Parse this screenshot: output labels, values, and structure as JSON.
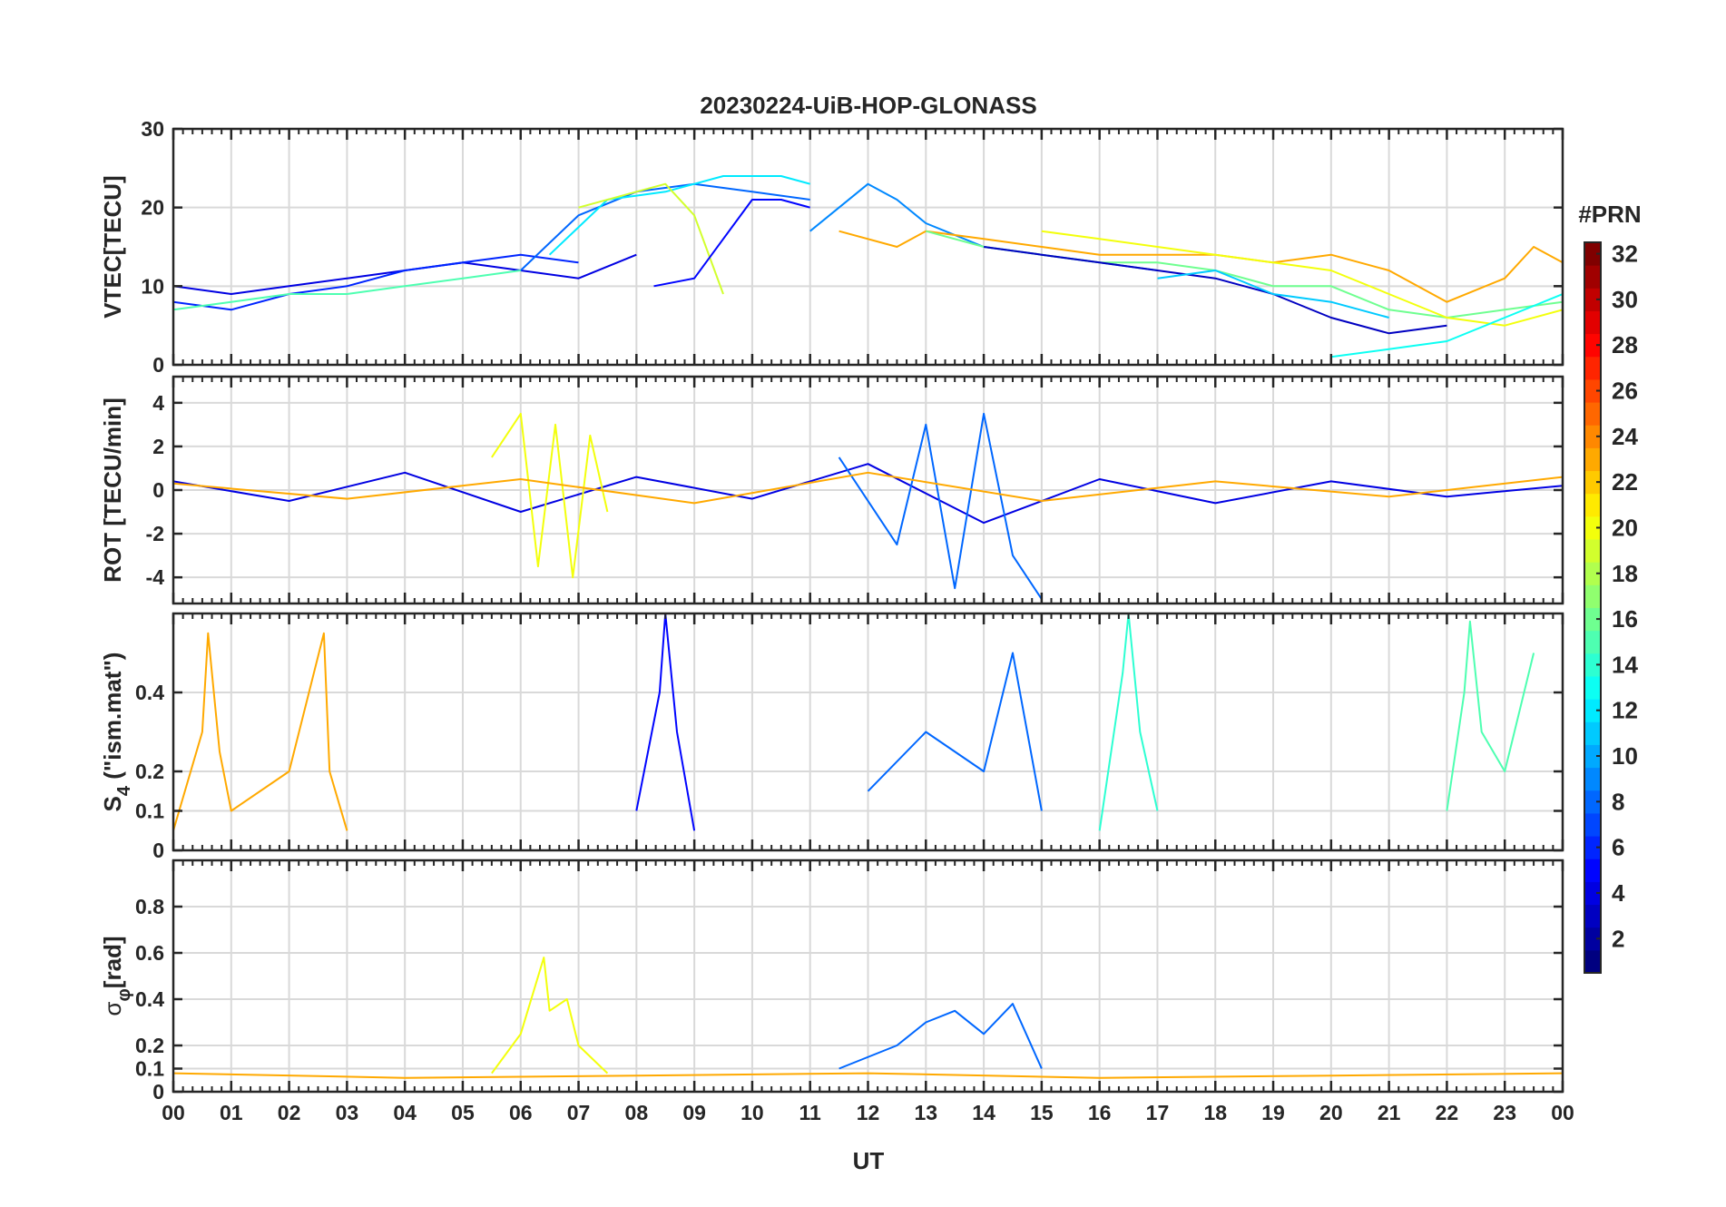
{
  "chart_data": {
    "type": "line",
    "title": "20230224-UiB-HOP-GLONASS",
    "xlabel": "UT",
    "x_ticks": [
      "00",
      "01",
      "02",
      "03",
      "04",
      "05",
      "06",
      "07",
      "08",
      "09",
      "10",
      "11",
      "12",
      "13",
      "14",
      "15",
      "16",
      "17",
      "18",
      "19",
      "20",
      "21",
      "22",
      "23",
      "00"
    ],
    "xlim": [
      0,
      24
    ],
    "grid": true,
    "colorbar": {
      "label": "#PRN",
      "range": [
        1,
        32
      ],
      "ticks": [
        "2",
        "4",
        "6",
        "8",
        "10",
        "12",
        "14",
        "16",
        "18",
        "20",
        "22",
        "24",
        "26",
        "28",
        "30",
        "32"
      ],
      "colormap": "jet"
    },
    "panels": [
      {
        "ylabel": "VTEC[TECU]",
        "ylim": [
          0,
          30
        ],
        "y_ticks": [
          "0",
          "10",
          "20",
          "30"
        ],
        "series": [
          {
            "prn": 4,
            "x": [
              0.0,
              1.0,
              2.0,
              3.0,
              4.0,
              5.0,
              6.0,
              7.0,
              8.0
            ],
            "y": [
              10,
              9,
              10,
              11,
              12,
              13,
              12,
              11,
              14
            ]
          },
          {
            "prn": 6,
            "x": [
              0.0,
              1.0,
              2.0,
              3.0,
              4.0,
              5.0,
              6.0,
              7.0
            ],
            "y": [
              8,
              7,
              9,
              10,
              12,
              13,
              14,
              13
            ]
          },
          {
            "prn": 8,
            "x": [
              6.0,
              7.0,
              8.0,
              9.0,
              10.0,
              11.0
            ],
            "y": [
              12,
              19,
              22,
              23,
              22,
              21
            ]
          },
          {
            "prn": 12,
            "x": [
              6.5,
              7.5,
              8.5,
              9.5,
              10.5,
              11.0
            ],
            "y": [
              14,
              21,
              22,
              24,
              24,
              23
            ]
          },
          {
            "prn": 15,
            "x": [
              0.0,
              1.0,
              2.0,
              3.0,
              4.0,
              5.0,
              6.0
            ],
            "y": [
              7,
              8,
              9,
              9,
              10,
              11,
              12
            ]
          },
          {
            "prn": 19,
            "x": [
              7.0,
              8.0,
              8.5,
              9.0,
              9.5
            ],
            "y": [
              20,
              22,
              23,
              19,
              9
            ]
          },
          {
            "prn": 5,
            "x": [
              8.3,
              9.0,
              9.5,
              10.0,
              10.5,
              11.0
            ],
            "y": [
              10,
              11,
              16,
              21,
              21,
              20
            ]
          },
          {
            "prn": 9,
            "x": [
              11.0,
              12.0,
              12.5,
              13.0,
              14.0,
              15.0,
              16.0,
              17.0
            ],
            "y": [
              17,
              23,
              21,
              18,
              15,
              14,
              13,
              12
            ]
          },
          {
            "prn": 23,
            "x": [
              11.5,
              12.5,
              13.0,
              14.0,
              15.0,
              16.0,
              17.0,
              18.0,
              19.0,
              20.0,
              21.0,
              22.0,
              23.0,
              23.5,
              24.0
            ],
            "y": [
              17,
              15,
              17,
              16,
              15,
              14,
              14,
              14,
              13,
              14,
              12,
              8,
              11,
              15,
              13
            ]
          },
          {
            "prn": 16,
            "x": [
              13.0,
              14.0,
              15.0,
              16.0,
              17.0,
              18.0,
              19.0,
              20.0,
              21.0,
              22.0,
              23.0,
              24.0
            ],
            "y": [
              17,
              15,
              14,
              13,
              13,
              12,
              10,
              10,
              7,
              6,
              7,
              8
            ]
          },
          {
            "prn": 3,
            "x": [
              14.0,
              15.0,
              16.0,
              17.0,
              18.0,
              19.0,
              20.0,
              21.0,
              22.0
            ],
            "y": [
              15,
              14,
              13,
              12,
              11,
              9,
              6,
              4,
              5
            ]
          },
          {
            "prn": 11,
            "x": [
              17.0,
              18.0,
              19.0,
              20.0,
              21.0
            ],
            "y": [
              11,
              12,
              9,
              8,
              6
            ]
          },
          {
            "prn": 20,
            "x": [
              15.0,
              16.0,
              17.0,
              18.0,
              19.0,
              20.0,
              21.0,
              22.0,
              23.0,
              24.0
            ],
            "y": [
              17,
              16,
              15,
              14,
              13,
              12,
              9,
              6,
              5,
              7
            ]
          },
          {
            "prn": 13,
            "x": [
              20.0,
              21.0,
              22.0,
              23.0,
              24.0
            ],
            "y": [
              1,
              2,
              3,
              6,
              9
            ]
          }
        ]
      },
      {
        "ylabel": "ROT [TECU/min]",
        "ylim": [
          -5.2,
          5.2
        ],
        "y_ticks": [
          "-4",
          "-2",
          "0",
          "2",
          "4"
        ],
        "series": [
          {
            "prn": 4,
            "x": [
              0,
              2,
              4,
              6,
              8,
              10,
              12,
              14,
              16,
              18,
              20,
              22,
              24
            ],
            "y": [
              0.4,
              -0.5,
              0.8,
              -1.0,
              0.6,
              -0.4,
              1.2,
              -1.5,
              0.5,
              -0.6,
              0.4,
              -0.3,
              0.2
            ]
          },
          {
            "prn": 20,
            "x": [
              5.5,
              6.0,
              6.3,
              6.6,
              6.9,
              7.2,
              7.5
            ],
            "y": [
              1.5,
              3.5,
              -3.5,
              3.0,
              -4.0,
              2.5,
              -1.0
            ]
          },
          {
            "prn": 8,
            "x": [
              11.5,
              12.5,
              13.0,
              13.5,
              14.0,
              14.5,
              15.0
            ],
            "y": [
              1.5,
              -2.5,
              3.0,
              -4.5,
              3.5,
              -3.0,
              -5.0
            ]
          },
          {
            "prn": 23,
            "x": [
              0,
              3,
              6,
              9,
              12,
              15,
              18,
              21,
              24
            ],
            "y": [
              0.3,
              -0.4,
              0.5,
              -0.6,
              0.8,
              -0.5,
              0.4,
              -0.3,
              0.6
            ]
          }
        ]
      },
      {
        "ylabel": "S4 (\"ism.mat\")",
        "ylabel_main": "S",
        "ylabel_sub": "4",
        "ylabel_rest": " (\"ism.mat\")",
        "ylim": [
          0,
          0.6
        ],
        "y_ticks": [
          "0",
          "0.1",
          "0.2",
          "0.4"
        ],
        "series": [
          {
            "prn": 23,
            "x": [
              0.0,
              0.5,
              0.6,
              0.8,
              1.0,
              2.0,
              2.6,
              2.7,
              3.0
            ],
            "y": [
              0.05,
              0.3,
              0.55,
              0.25,
              0.1,
              0.2,
              0.55,
              0.2,
              0.05
            ]
          },
          {
            "prn": 5,
            "x": [
              8.0,
              8.4,
              8.5,
              8.7,
              9.0
            ],
            "y": [
              0.1,
              0.4,
              0.6,
              0.3,
              0.05
            ]
          },
          {
            "prn": 14,
            "x": [
              16.0,
              16.4,
              16.5,
              16.7,
              17.0
            ],
            "y": [
              0.05,
              0.45,
              0.6,
              0.3,
              0.1
            ]
          },
          {
            "prn": 15,
            "x": [
              22.0,
              22.3,
              22.4,
              22.6,
              23.0,
              23.5
            ],
            "y": [
              0.1,
              0.4,
              0.58,
              0.3,
              0.2,
              0.5
            ]
          },
          {
            "prn": 8,
            "x": [
              12.0,
              13.0,
              14.0,
              14.5,
              15.0
            ],
            "y": [
              0.15,
              0.3,
              0.2,
              0.5,
              0.1
            ]
          }
        ]
      },
      {
        "ylabel": "σφ[rad]",
        "ylabel_main": "σ",
        "ylabel_sub": "φ",
        "ylabel_rest": "[rad]",
        "ylim": [
          0,
          1.0
        ],
        "y_ticks": [
          "0",
          "0.1",
          "0.2",
          "0.4",
          "0.6",
          "0.8"
        ],
        "series": [
          {
            "prn": 20,
            "x": [
              5.5,
              6.0,
              6.4,
              6.5,
              6.8,
              7.0,
              7.5
            ],
            "y": [
              0.08,
              0.25,
              0.58,
              0.35,
              0.4,
              0.2,
              0.08
            ]
          },
          {
            "prn": 8,
            "x": [
              11.5,
              12.5,
              13.0,
              13.5,
              14.0,
              14.5,
              15.0
            ],
            "y": [
              0.1,
              0.2,
              0.3,
              0.35,
              0.25,
              0.38,
              0.1
            ]
          },
          {
            "prn": 23,
            "x": [
              0,
              4,
              8,
              12,
              16,
              20,
              24
            ],
            "y": [
              0.08,
              0.06,
              0.07,
              0.08,
              0.06,
              0.07,
              0.08
            ]
          }
        ]
      }
    ]
  }
}
